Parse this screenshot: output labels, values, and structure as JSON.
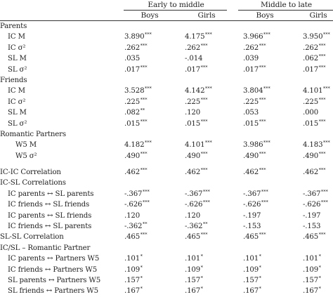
{
  "header": {
    "groups": [
      "Early to middle",
      "Middle to late"
    ],
    "columns": [
      "Boys",
      "Girls",
      "Boys",
      "Girls"
    ]
  },
  "rows": [
    {
      "type": "section",
      "label": "Parents"
    },
    {
      "type": "item",
      "label": "IC M",
      "vals": [
        [
          "3.890",
          "***"
        ],
        [
          "4.175",
          "***"
        ],
        [
          "3.966",
          "***"
        ],
        [
          "3.950",
          "***"
        ]
      ]
    },
    {
      "type": "item",
      "label": "IC σ²",
      "vals": [
        [
          ".262",
          "***"
        ],
        [
          ".262",
          "***"
        ],
        [
          ".262",
          "***"
        ],
        [
          ".262",
          "***"
        ]
      ]
    },
    {
      "type": "item",
      "label": "SL M",
      "vals": [
        [
          ".035",
          ""
        ],
        [
          "-.014",
          ""
        ],
        [
          ".039",
          ""
        ],
        [
          ".062",
          "***"
        ]
      ]
    },
    {
      "type": "item",
      "label": "SL σ²",
      "vals": [
        [
          ".017",
          "***"
        ],
        [
          ".017",
          "***"
        ],
        [
          ".017",
          "***"
        ],
        [
          ".017",
          "***"
        ]
      ]
    },
    {
      "type": "section",
      "label": "Friends"
    },
    {
      "type": "item",
      "label": "IC M",
      "vals": [
        [
          "3.528",
          "***"
        ],
        [
          "4.142",
          "***"
        ],
        [
          "3.804",
          "***"
        ],
        [
          "4.101",
          "***"
        ]
      ]
    },
    {
      "type": "item",
      "label": "IC σ²",
      "vals": [
        [
          ".225",
          "***"
        ],
        [
          ".225",
          "***"
        ],
        [
          ".225",
          "***"
        ],
        [
          ".225",
          "***"
        ]
      ]
    },
    {
      "type": "item",
      "label": "SL M",
      "vals": [
        [
          ".082",
          "**"
        ],
        [
          ".120",
          ""
        ],
        [
          ".053",
          ""
        ],
        [
          ".000",
          ""
        ]
      ]
    },
    {
      "type": "item",
      "label": "SL σ²",
      "vals": [
        [
          ".015",
          "***"
        ],
        [
          ".015",
          "***"
        ],
        [
          ".015",
          "***"
        ],
        [
          ".015",
          "***"
        ]
      ]
    },
    {
      "type": "section",
      "label": "Romantic Partners"
    },
    {
      "type": "w5",
      "label": "W5 M",
      "vals": [
        [
          "4.182",
          "***"
        ],
        [
          "4.101",
          "***"
        ],
        [
          "3.986",
          "***"
        ],
        [
          "4.183",
          "***"
        ]
      ]
    },
    {
      "type": "w5",
      "label": "W5 σ²",
      "vals": [
        [
          ".490",
          "***"
        ],
        [
          ".490",
          "***"
        ],
        [
          ".490",
          "***"
        ],
        [
          ".490",
          "***"
        ]
      ]
    },
    {
      "type": "gap"
    },
    {
      "type": "section",
      "label": "IC-IC Correlation",
      "vals": [
        [
          ".462",
          "***"
        ],
        [
          ".462",
          "***"
        ],
        [
          ".462",
          "***"
        ],
        [
          ".462",
          "***"
        ]
      ]
    },
    {
      "type": "section",
      "label": "IC-SL Correlations"
    },
    {
      "type": "item",
      "label": "IC parents ↔ SL parents",
      "vals": [
        [
          "-.367",
          "***"
        ],
        [
          "-.367",
          "***"
        ],
        [
          "-.367",
          "***"
        ],
        [
          "-.367",
          "***"
        ]
      ]
    },
    {
      "type": "item",
      "label": "IC friends ↔ SL friends",
      "vals": [
        [
          "-.626",
          "***"
        ],
        [
          "-.626",
          "***"
        ],
        [
          "-.626",
          "***"
        ],
        [
          "-.626",
          "***"
        ]
      ]
    },
    {
      "type": "item",
      "label": "IC parents ↔ SL friends",
      "vals": [
        [
          ".120",
          ""
        ],
        [
          ".120",
          ""
        ],
        [
          "-.197",
          ""
        ],
        [
          "-.197",
          ""
        ]
      ]
    },
    {
      "type": "item",
      "label": "IC friends ↔ SL parents",
      "vals": [
        [
          "-.362",
          "**"
        ],
        [
          "-.362",
          "**"
        ],
        [
          "-.153",
          ""
        ],
        [
          "-.153",
          ""
        ]
      ]
    },
    {
      "type": "section",
      "label": "SL-SL Correlation",
      "vals": [
        [
          ".465",
          "***"
        ],
        [
          ".465",
          "***"
        ],
        [
          ".465",
          "***"
        ],
        [
          ".465",
          "***"
        ]
      ]
    },
    {
      "type": "section",
      "label": "IC/SL – Romantic Partner"
    },
    {
      "type": "item",
      "label": "IC parents ↔ Partners W5",
      "vals": [
        [
          ".101",
          "*"
        ],
        [
          ".101",
          "*"
        ],
        [
          ".101",
          "*"
        ],
        [
          ".101",
          "*"
        ]
      ]
    },
    {
      "type": "item",
      "label": "IC friends ↔ Partners W5",
      "vals": [
        [
          ".109",
          "*"
        ],
        [
          ".109",
          "*"
        ],
        [
          ".109",
          "*"
        ],
        [
          ".109",
          "*"
        ]
      ]
    },
    {
      "type": "item",
      "label": "SL parents ↔ Partners W5",
      "vals": [
        [
          ".157",
          "*"
        ],
        [
          ".157",
          "*"
        ],
        [
          ".157",
          "*"
        ],
        [
          ".157",
          "*"
        ]
      ]
    },
    {
      "type": "item",
      "label": "SL friends ↔ Partners W5",
      "vals": [
        [
          ".167",
          "*"
        ],
        [
          ".167",
          "*"
        ],
        [
          ".167",
          "*"
        ],
        [
          ".167",
          "*"
        ]
      ]
    }
  ]
}
